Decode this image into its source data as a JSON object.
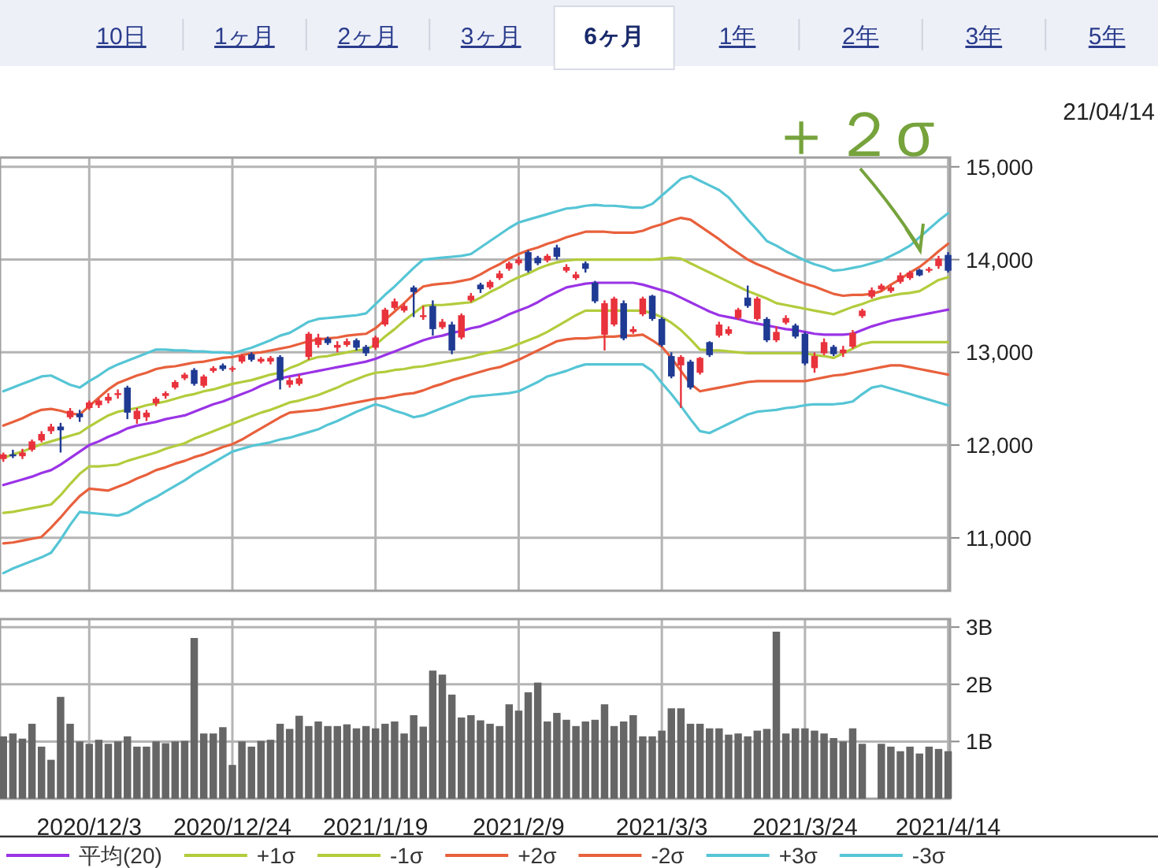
{
  "chart_data": [
    {
      "type": "candlestick",
      "categories": [
        null,
        null,
        null,
        null,
        null,
        null,
        null,
        null,
        null,
        "2020/12/3",
        null,
        null,
        null,
        null,
        null,
        null,
        null,
        null,
        null,
        null,
        null,
        null,
        null,
        null,
        "2020/12/24",
        null,
        null,
        null,
        null,
        null,
        null,
        null,
        null,
        null,
        null,
        null,
        null,
        null,
        null,
        "2021/1/19",
        null,
        null,
        null,
        null,
        null,
        null,
        null,
        null,
        null,
        null,
        null,
        null,
        null,
        null,
        "2021/2/9",
        null,
        null,
        null,
        null,
        null,
        null,
        null,
        null,
        null,
        null,
        null,
        null,
        null,
        null,
        "2021/3/3",
        null,
        null,
        null,
        null,
        null,
        null,
        null,
        null,
        null,
        null,
        null,
        null,
        null,
        null,
        "2021/3/24",
        null,
        null,
        null,
        null,
        null,
        null,
        null,
        null,
        null,
        null,
        null,
        null,
        null,
        null,
        "2021/4/14"
      ],
      "colors": [
        "#e8323c",
        "#1f3a93",
        "#e8323c",
        "#e8323c",
        "#e8323c",
        "#e8323c",
        "#1f3a93",
        "#e8323c",
        "#1f3a93",
        "#e8323c",
        "#e8323c",
        "#e8323c",
        "#e8323c",
        "#1f3a93",
        "#e8323c",
        "#e8323c",
        "#e8323c",
        "#e8323c",
        "#e8323c",
        "#e8323c",
        "#1f3a93",
        "#e8323c",
        "#e8323c",
        "#1f3a93",
        "#e8323c",
        "#e8323c",
        "#1f3a93",
        "#e8323c",
        "#e8323c",
        "#1f3a93",
        "#e8323c",
        "#e8323c",
        "#e8323c",
        "#e8323c",
        "#1f3a93",
        "#e8323c",
        "#e8323c",
        "#1f3a93",
        "#1f3a93",
        "#e8323c",
        "#e8323c",
        "#e8323c",
        "#e8323c",
        "#1f3a93",
        "#e8323c",
        "#1f3a93",
        "#e8323c",
        "#1f3a93",
        "#e8323c",
        "#e8323c",
        "#1f3a93",
        "#e8323c",
        "#e8323c",
        "#e8323c",
        "#e8323c",
        "#1f3a93",
        "#1f3a93",
        "#e8323c",
        "#1f3a93",
        "#e8323c",
        "#e8323c",
        "#1f3a93",
        "#1f3a93",
        "#e8323c",
        "#e8323c",
        "#1f3a93",
        "#e8323c",
        "#e8323c",
        "#1f3a93",
        "#1f3a93",
        "#1f3a93",
        "#e8323c",
        "#1f3a93",
        "#e8323c",
        "#1f3a93",
        "#e8323c",
        "#e8323c",
        "#e8323c",
        "#1f3a93",
        "#e8323c",
        "#1f3a93",
        "#e8323c",
        "#e8323c",
        "#1f3a93",
        "#1f3a93",
        "#e8323c",
        "#e8323c",
        "#1f3a93",
        "#e8323c",
        "#e8323c",
        "#e8323c",
        "#e8323c",
        "#e8323c",
        "#e8323c",
        "#e8323c",
        "#e8323c",
        "#1f3a93",
        "#e8323c",
        "#e8323c",
        "#1f3a93"
      ],
      "ohlc": [
        [
          11850,
          11920,
          11820,
          11900
        ],
        [
          11900,
          11950,
          11860,
          11880
        ],
        [
          11880,
          11960,
          11850,
          11920
        ],
        [
          11950,
          12060,
          11930,
          12040
        ],
        [
          12050,
          12150,
          12030,
          12120
        ],
        [
          12150,
          12230,
          12120,
          12200
        ],
        [
          12200,
          12240,
          11920,
          12160
        ],
        [
          12300,
          12400,
          12280,
          12370
        ],
        [
          12340,
          12380,
          12250,
          12300
        ],
        [
          12400,
          12480,
          12380,
          12460
        ],
        [
          12430,
          12500,
          12400,
          12480
        ],
        [
          12480,
          12560,
          12450,
          12520
        ],
        [
          12540,
          12600,
          12500,
          12560
        ],
        [
          12620,
          12640,
          12280,
          12350
        ],
        [
          12280,
          12400,
          12230,
          12370
        ],
        [
          12300,
          12380,
          12260,
          12350
        ],
        [
          12450,
          12520,
          12420,
          12500
        ],
        [
          12530,
          12580,
          12500,
          12560
        ],
        [
          12620,
          12700,
          12600,
          12680
        ],
        [
          12720,
          12780,
          12700,
          12760
        ],
        [
          12810,
          12830,
          12640,
          12660
        ],
        [
          12640,
          12760,
          12620,
          12740
        ],
        [
          12800,
          12850,
          12780,
          12830
        ],
        [
          12860,
          12880,
          12800,
          12820
        ],
        [
          12820,
          12850,
          12790,
          12830
        ],
        [
          12900,
          12980,
          12880,
          12960
        ],
        [
          12980,
          13000,
          12900,
          12920
        ],
        [
          12900,
          12950,
          12880,
          12930
        ],
        [
          12900,
          12960,
          12870,
          12940
        ],
        [
          12950,
          12970,
          12600,
          12700
        ],
        [
          12650,
          12730,
          12620,
          12700
        ],
        [
          12660,
          12760,
          12640,
          12720
        ],
        [
          12950,
          13220,
          12920,
          13200
        ],
        [
          13080,
          13200,
          13050,
          13160
        ],
        [
          13150,
          13170,
          13080,
          13100
        ],
        [
          13050,
          13120,
          13000,
          13080
        ],
        [
          13080,
          13150,
          13060,
          13120
        ],
        [
          13130,
          13150,
          13020,
          13050
        ],
        [
          13060,
          13080,
          12960,
          12990
        ],
        [
          13050,
          13180,
          13030,
          13160
        ],
        [
          13300,
          13480,
          13280,
          13460
        ],
        [
          13480,
          13580,
          13460,
          13550
        ],
        [
          13450,
          13530,
          13430,
          13500
        ],
        [
          13700,
          13720,
          13380,
          13650
        ],
        [
          13380,
          13500,
          13350,
          13400
        ],
        [
          13500,
          13560,
          13180,
          13250
        ],
        [
          13270,
          13360,
          13250,
          13330
        ],
        [
          13300,
          13330,
          12980,
          13020
        ],
        [
          13160,
          13420,
          13140,
          13400
        ],
        [
          13560,
          13640,
          13540,
          13610
        ],
        [
          13730,
          13750,
          13640,
          13680
        ],
        [
          13700,
          13780,
          13680,
          13760
        ],
        [
          13800,
          13880,
          13780,
          13850
        ],
        [
          13900,
          13980,
          13880,
          13960
        ],
        [
          13960,
          14030,
          13940,
          14000
        ],
        [
          14080,
          14100,
          13860,
          13880
        ],
        [
          14020,
          14040,
          13940,
          13960
        ],
        [
          13990,
          14060,
          13970,
          14040
        ],
        [
          14130,
          14160,
          14000,
          14030
        ],
        [
          13880,
          13950,
          13860,
          13920
        ],
        [
          13800,
          13870,
          13780,
          13840
        ],
        [
          13960,
          13980,
          13860,
          13900
        ],
        [
          13750,
          13770,
          13530,
          13550
        ],
        [
          13190,
          13560,
          13020,
          13530
        ],
        [
          13300,
          13600,
          13280,
          13580
        ],
        [
          13530,
          13560,
          13130,
          13150
        ],
        [
          13220,
          13280,
          13200,
          13250
        ],
        [
          13410,
          13600,
          13390,
          13580
        ],
        [
          13610,
          13620,
          13340,
          13360
        ],
        [
          13360,
          13380,
          13060,
          13080
        ],
        [
          12960,
          13000,
          12720,
          12740
        ],
        [
          12860,
          12970,
          12400,
          12950
        ],
        [
          12900,
          12920,
          12600,
          12620
        ],
        [
          12780,
          12950,
          12760,
          12940
        ],
        [
          13110,
          13120,
          12950,
          12970
        ],
        [
          13180,
          13330,
          13160,
          13300
        ],
        [
          13200,
          13280,
          13180,
          13250
        ],
        [
          13370,
          13480,
          13350,
          13460
        ],
        [
          13590,
          13720,
          13480,
          13500
        ],
        [
          13360,
          13600,
          13340,
          13580
        ],
        [
          13360,
          13380,
          13110,
          13130
        ],
        [
          13130,
          13280,
          13110,
          13220
        ],
        [
          13320,
          13400,
          13300,
          13370
        ],
        [
          13290,
          13310,
          13150,
          13170
        ],
        [
          13200,
          13220,
          12860,
          12880
        ],
        [
          12830,
          13000,
          12780,
          12960
        ],
        [
          12990,
          13150,
          12970,
          13110
        ],
        [
          13060,
          13080,
          12960,
          12980
        ],
        [
          12990,
          13070,
          12950,
          13030
        ],
        [
          13060,
          13240,
          13040,
          13210
        ],
        [
          13390,
          13470,
          13370,
          13450
        ],
        [
          13600,
          13700,
          13580,
          13670
        ],
        [
          13680,
          13740,
          13660,
          13720
        ],
        [
          13660,
          13720,
          13640,
          13700
        ],
        [
          13760,
          13860,
          13740,
          13830
        ],
        [
          13800,
          13880,
          13780,
          13860
        ],
        [
          13890,
          13900,
          13820,
          13830
        ],
        [
          13880,
          13920,
          13860,
          13900
        ],
        [
          13930,
          14040,
          13900,
          14010
        ],
        [
          14050,
          14080,
          13860,
          13880
        ]
      ],
      "series": [
        {
          "name": "平均(20)",
          "type": "line",
          "color": "#9a33e6",
          "values": [
            11570,
            11600,
            11630,
            11660,
            11700,
            11730,
            11790,
            11860,
            11930,
            12000,
            12040,
            12090,
            12130,
            12180,
            12210,
            12230,
            12250,
            12280,
            12300,
            12320,
            12360,
            12400,
            12440,
            12470,
            12510,
            12550,
            12590,
            12640,
            12680,
            12720,
            12740,
            12760,
            12780,
            12800,
            12820,
            12840,
            12860,
            12880,
            12900,
            12930,
            12970,
            13010,
            13050,
            13090,
            13130,
            13160,
            13180,
            13210,
            13230,
            13260,
            13280,
            13320,
            13360,
            13410,
            13450,
            13490,
            13540,
            13600,
            13650,
            13700,
            13720,
            13740,
            13750,
            13750,
            13750,
            13750,
            13750,
            13730,
            13700,
            13670,
            13640,
            13590,
            13540,
            13490,
            13440,
            13400,
            13380,
            13360,
            13330,
            13310,
            13290,
            13270,
            13250,
            13240,
            13220,
            13200,
            13190,
            13190,
            13190,
            13200,
            13240,
            13280,
            13310,
            13340,
            13360,
            13380,
            13400,
            13420,
            13440,
            13460
          ]
        },
        {
          "name": "+1σ",
          "type": "line",
          "color": "#b2cc3c",
          "values": [
            11860,
            11900,
            11930,
            11970,
            12010,
            12040,
            12070,
            12100,
            12130,
            12200,
            12260,
            12320,
            12360,
            12380,
            12400,
            12430,
            12450,
            12470,
            12500,
            12530,
            12550,
            12580,
            12600,
            12630,
            12660,
            12680,
            12700,
            12730,
            12760,
            12780,
            12830,
            12870,
            12920,
            12950,
            12960,
            12980,
            13000,
            13020,
            13030,
            13080,
            13170,
            13250,
            13340,
            13420,
            13500,
            13510,
            13510,
            13520,
            13530,
            13540,
            13590,
            13650,
            13700,
            13760,
            13810,
            13850,
            13900,
            13940,
            13970,
            13990,
            14000,
            14000,
            14000,
            14000,
            14000,
            14000,
            14000,
            14000,
            14000,
            14010,
            14020,
            14010,
            13960,
            13910,
            13860,
            13810,
            13760,
            13710,
            13660,
            13620,
            13580,
            13530,
            13510,
            13490,
            13470,
            13450,
            13430,
            13410,
            13450,
            13490,
            13520,
            13560,
            13590,
            13610,
            13630,
            13640,
            13660,
            13720,
            13780,
            13810
          ]
        },
        {
          "name": "-1σ",
          "type": "line",
          "color": "#b2cc3c",
          "values": [
            11270,
            11280,
            11300,
            11320,
            11340,
            11360,
            11460,
            11580,
            11690,
            11770,
            11770,
            11780,
            11790,
            11830,
            11860,
            11890,
            11920,
            11960,
            11990,
            12020,
            12070,
            12110,
            12150,
            12190,
            12230,
            12270,
            12310,
            12350,
            12380,
            12420,
            12460,
            12480,
            12510,
            12540,
            12580,
            12620,
            12670,
            12710,
            12750,
            12780,
            12790,
            12810,
            12820,
            12840,
            12850,
            12870,
            12890,
            12910,
            12930,
            12950,
            12980,
            13000,
            13020,
            13050,
            13090,
            13130,
            13170,
            13220,
            13280,
            13340,
            13400,
            13450,
            13450,
            13450,
            13450,
            13450,
            13450,
            13450,
            13420,
            13380,
            13320,
            13240,
            13140,
            13030,
            13020,
            13020,
            13010,
            13000,
            12990,
            12990,
            12990,
            12990,
            12990,
            12990,
            12990,
            12970,
            12960,
            12940,
            12990,
            13040,
            13090,
            13110,
            13110,
            13110,
            13110,
            13110,
            13110,
            13110,
            13110,
            13110
          ]
        },
        {
          "name": "+2σ",
          "type": "line",
          "color": "#e8603c",
          "values": [
            12210,
            12250,
            12290,
            12340,
            12380,
            12390,
            12370,
            12340,
            12330,
            12420,
            12510,
            12600,
            12670,
            12710,
            12750,
            12780,
            12820,
            12840,
            12850,
            12870,
            12890,
            12900,
            12920,
            12940,
            12950,
            12970,
            12990,
            13000,
            13020,
            13040,
            13060,
            13090,
            13120,
            13140,
            13150,
            13160,
            13180,
            13190,
            13200,
            13260,
            13350,
            13440,
            13530,
            13630,
            13710,
            13730,
            13740,
            13750,
            13770,
            13790,
            13840,
            13900,
            13950,
            14010,
            14060,
            14100,
            14130,
            14170,
            14200,
            14240,
            14270,
            14300,
            14300,
            14300,
            14290,
            14290,
            14290,
            14310,
            14350,
            14380,
            14420,
            14450,
            14430,
            14360,
            14290,
            14220,
            14140,
            14070,
            14000,
            13950,
            13910,
            13860,
            13820,
            13780,
            13740,
            13710,
            13670,
            13630,
            13610,
            13620,
            13620,
            13630,
            13660,
            13730,
            13790,
            13860,
            13920,
            14000,
            14090,
            14170
          ]
        },
        {
          "name": "-2σ",
          "type": "line",
          "color": "#e8603c",
          "values": [
            10940,
            10950,
            10970,
            10990,
            11010,
            11110,
            11220,
            11340,
            11450,
            11530,
            11520,
            11510,
            11550,
            11590,
            11640,
            11680,
            11730,
            11760,
            11800,
            11830,
            11870,
            11900,
            11940,
            11980,
            12010,
            12060,
            12120,
            12180,
            12240,
            12300,
            12350,
            12360,
            12370,
            12380,
            12400,
            12420,
            12440,
            12460,
            12480,
            12500,
            12510,
            12530,
            12550,
            12560,
            12590,
            12630,
            12660,
            12700,
            12730,
            12760,
            12790,
            12820,
            12840,
            12880,
            12920,
            12970,
            13020,
            13070,
            13120,
            13140,
            13150,
            13150,
            13160,
            13170,
            13170,
            13180,
            13180,
            13190,
            13130,
            13060,
            12940,
            12800,
            12660,
            12580,
            12600,
            12620,
            12640,
            12660,
            12680,
            12690,
            12690,
            12690,
            12690,
            12690,
            12690,
            12710,
            12730,
            12750,
            12760,
            12780,
            12800,
            12820,
            12840,
            12860,
            12860,
            12840,
            12820,
            12800,
            12780,
            12760
          ]
        },
        {
          "name": "+3σ",
          "type": "line",
          "color": "#55c5d5",
          "values": [
            12580,
            12620,
            12660,
            12700,
            12740,
            12750,
            12700,
            12650,
            12620,
            12690,
            12750,
            12820,
            12870,
            12910,
            12950,
            12990,
            13030,
            13030,
            13020,
            13020,
            13010,
            13010,
            13000,
            13000,
            12990,
            13020,
            13050,
            13090,
            13130,
            13180,
            13210,
            13270,
            13330,
            13360,
            13370,
            13380,
            13390,
            13400,
            13420,
            13520,
            13620,
            13710,
            13810,
            13910,
            14000,
            14010,
            14020,
            14030,
            14040,
            14060,
            14130,
            14200,
            14270,
            14340,
            14400,
            14430,
            14460,
            14490,
            14520,
            14550,
            14560,
            14580,
            14590,
            14580,
            14580,
            14570,
            14560,
            14560,
            14600,
            14690,
            14780,
            14870,
            14900,
            14850,
            14800,
            14750,
            14670,
            14550,
            14430,
            14320,
            14200,
            14150,
            14090,
            14040,
            13990,
            13950,
            13920,
            13880,
            13890,
            13910,
            13930,
            13960,
            13990,
            14040,
            14090,
            14150,
            14240,
            14330,
            14420,
            14500
          ]
        },
        {
          "name": "-3σ",
          "type": "line",
          "color": "#55c5d5",
          "values": [
            10620,
            10670,
            10710,
            10750,
            10790,
            10840,
            10980,
            11140,
            11280,
            11270,
            11260,
            11250,
            11240,
            11270,
            11330,
            11390,
            11440,
            11500,
            11560,
            11620,
            11690,
            11750,
            11810,
            11870,
            11930,
            11960,
            11990,
            12010,
            12030,
            12060,
            12080,
            12110,
            12140,
            12170,
            12220,
            12260,
            12310,
            12360,
            12400,
            12440,
            12410,
            12370,
            12340,
            12300,
            12320,
            12360,
            12400,
            12440,
            12480,
            12520,
            12530,
            12540,
            12550,
            12560,
            12580,
            12630,
            12680,
            12740,
            12770,
            12800,
            12840,
            12870,
            12870,
            12870,
            12870,
            12870,
            12870,
            12870,
            12800,
            12670,
            12550,
            12420,
            12280,
            12150,
            12130,
            12180,
            12230,
            12280,
            12330,
            12360,
            12370,
            12380,
            12400,
            12410,
            12430,
            12440,
            12440,
            12440,
            12450,
            12470,
            12550,
            12620,
            12640,
            12610,
            12580,
            12550,
            12520,
            12490,
            12460,
            12430
          ]
        }
      ],
      "ylim": [
        10430,
        15100
      ],
      "yticks": [
        {
          "value": 11000,
          "label": "11,000"
        },
        {
          "value": 12000,
          "label": "12,000"
        },
        {
          "value": 13000,
          "label": "13,000"
        },
        {
          "value": 14000,
          "label": "14,000"
        },
        {
          "value": 15000,
          "label": "15,000"
        }
      ],
      "tick_labels": "y",
      "grid": true,
      "legend": "bottom",
      "annotations": [
        "10日",
        "1ヶ月",
        "2ヶ月",
        "3ヶ月",
        "6ヶ月",
        "1年",
        "2年",
        "3年",
        "5年",
        "21/04/14",
        "＋２σ"
      ]
    },
    {
      "type": "bar",
      "color": "#666666",
      "categories": [
        null,
        null,
        null,
        null,
        null,
        null,
        null,
        null,
        null,
        "2020/12/3",
        null,
        null,
        null,
        null,
        null,
        null,
        null,
        null,
        null,
        null,
        null,
        null,
        null,
        null,
        "2020/12/24",
        null,
        null,
        null,
        null,
        null,
        null,
        null,
        null,
        null,
        null,
        null,
        null,
        null,
        null,
        "2021/1/19",
        null,
        null,
        null,
        null,
        null,
        null,
        null,
        null,
        null,
        null,
        null,
        null,
        null,
        null,
        "2021/2/9",
        null,
        null,
        null,
        null,
        null,
        null,
        null,
        null,
        null,
        null,
        null,
        null,
        null,
        null,
        "2021/3/3",
        null,
        null,
        null,
        null,
        null,
        null,
        null,
        null,
        null,
        null,
        null,
        null,
        null,
        null,
        "2021/3/24",
        null,
        null,
        null,
        null,
        null,
        null,
        null,
        null,
        null,
        null,
        null,
        null,
        null,
        null,
        "2021/4/14"
      ],
      "values": [
        1.09,
        1.14,
        1.05,
        1.31,
        0.91,
        0.68,
        1.78,
        1.31,
        1.0,
        0.96,
        1.03,
        0.96,
        1.0,
        1.09,
        0.91,
        0.91,
        1.0,
        0.97,
        1.0,
        1.01,
        2.81,
        1.14,
        1.14,
        1.25,
        0.59,
        1.0,
        0.91,
        1.01,
        1.03,
        1.31,
        1.22,
        1.45,
        1.27,
        1.35,
        1.27,
        1.27,
        1.3,
        1.23,
        1.27,
        1.23,
        1.31,
        1.35,
        1.14,
        1.46,
        1.26,
        2.24,
        2.17,
        1.82,
        1.42,
        1.46,
        1.37,
        1.31,
        1.27,
        1.65,
        1.54,
        1.86,
        2.03,
        1.35,
        1.5,
        1.38,
        1.27,
        1.35,
        1.38,
        1.65,
        1.27,
        1.35,
        1.46,
        1.09,
        1.09,
        1.19,
        1.58,
        1.58,
        1.31,
        1.31,
        1.23,
        1.23,
        1.12,
        1.14,
        1.09,
        1.19,
        1.22,
        2.92,
        1.14,
        1.23,
        1.23,
        1.19,
        1.14,
        1.06,
        1.0,
        1.23,
        0.96,
        null,
        0.96,
        0.91,
        0.83,
        0.91,
        0.79,
        0.91,
        0.87,
        0.83
      ],
      "ylim": [
        0,
        3.14
      ],
      "yticks": [
        {
          "value": 1,
          "label": "1B"
        },
        {
          "value": 2,
          "label": "2B"
        },
        {
          "value": 3,
          "label": "3B"
        }
      ],
      "grid": true
    }
  ]
}
